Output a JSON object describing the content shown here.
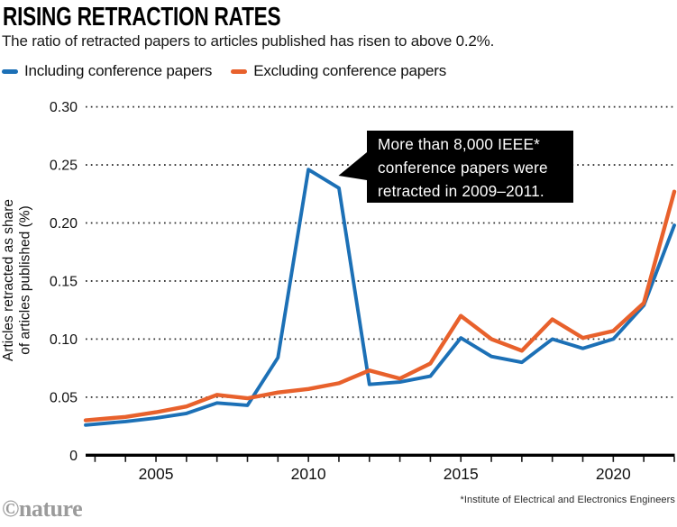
{
  "header": {
    "title": "RISING RETRACTION RATES",
    "subtitle": "The ratio of retracted papers to articles published has risen to above 0.2%."
  },
  "legend": [
    {
      "label": "Including conference papers",
      "color": "#1c70b6"
    },
    {
      "label": "Excluding conference papers",
      "color": "#e8612c"
    }
  ],
  "chart_data": {
    "type": "line",
    "title": "RISING RETRACTION RATES",
    "x": [
      2003,
      2004,
      2005,
      2006,
      2007,
      2008,
      2009,
      2010,
      2011,
      2012,
      2013,
      2014,
      2015,
      2016,
      2017,
      2018,
      2019,
      2020,
      2021,
      2022
    ],
    "series": [
      {
        "id": "including",
        "name": "Including conference papers",
        "color": "#1c70b6",
        "values": [
          0.026,
          0.029,
          0.032,
          0.036,
          0.045,
          0.043,
          0.084,
          0.246,
          0.23,
          0.061,
          0.063,
          0.068,
          0.101,
          0.085,
          0.08,
          0.1,
          0.092,
          0.1,
          0.129,
          0.198
        ]
      },
      {
        "id": "excluding",
        "name": "Excluding conference papers",
        "color": "#e8612c",
        "values": [
          0.03,
          0.033,
          0.037,
          0.042,
          0.052,
          0.049,
          0.054,
          0.057,
          0.062,
          0.073,
          0.066,
          0.079,
          0.12,
          0.1,
          0.09,
          0.117,
          0.101,
          0.107,
          0.131,
          0.227
        ]
      }
    ],
    "xlabel": "",
    "ylabel_lines": [
      "Articles retracted as share",
      "of articles published (%)"
    ],
    "ylim": [
      0,
      0.3
    ],
    "yticks": [
      0,
      0.05,
      0.1,
      0.15,
      0.2,
      0.25,
      0.3
    ],
    "ytick_labels": [
      "0",
      "0.05",
      "0.10",
      "0.15",
      "0.20",
      "0.25",
      "0.30"
    ],
    "xticks_labeled": [
      2005,
      2010,
      2015,
      2020
    ],
    "grid": "dotted-horizontal",
    "legend_position": "top-left",
    "colors": {
      "axis": "#000000",
      "ticks": "#1a1a1a",
      "grid": "#2e2e2e",
      "text": "#111111"
    },
    "annotation": {
      "lines": [
        "More than 8,000 IEEE*",
        "conference papers were",
        "retracted in 2009–2011."
      ],
      "bg": "#000000",
      "text_color": "#ffffff",
      "points_to": {
        "year": 2011,
        "series": "including"
      }
    }
  },
  "footer": {
    "logo": "©nature",
    "footnote": "*Institute of Electrical and Electronics Engineers"
  }
}
